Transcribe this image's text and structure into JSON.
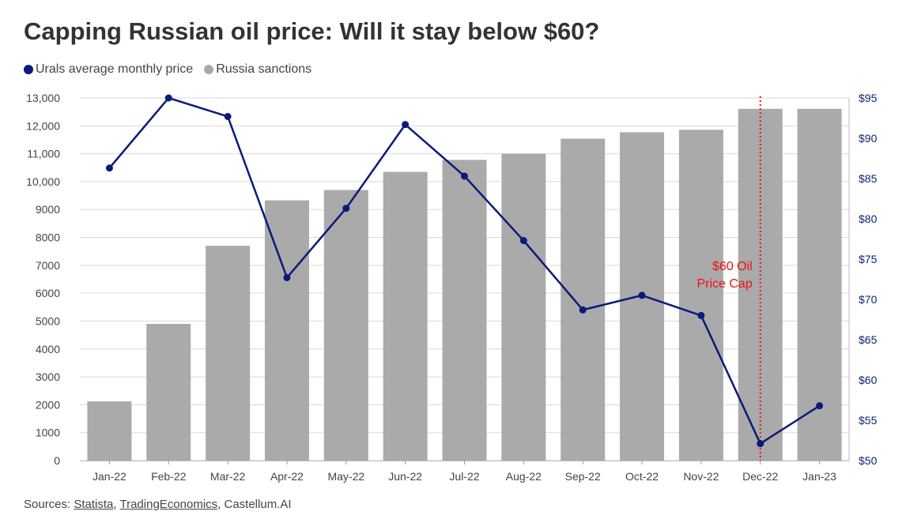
{
  "title": "Capping Russian oil price: Will it stay below $60?",
  "legend": [
    {
      "label": "Urals average monthly price",
      "color": "#0b1a7a"
    },
    {
      "label": "Russia sanctions",
      "color": "#aaaaaa"
    }
  ],
  "source": {
    "prefix": "Sources: ",
    "link1": "Statista",
    "sep1": ", ",
    "link2": "TradingEconomics",
    "sep2": ", ",
    "tail": "Castellum.AI"
  },
  "chart_data": {
    "type": "bar+line",
    "categories": [
      "Jan-22",
      "Feb-22",
      "Mar-22",
      "Apr-22",
      "May-22",
      "Jun-22",
      "Jul-22",
      "Aug-22",
      "Sep-22",
      "Oct-22",
      "Nov-22",
      "Dec-22",
      "Jan-23"
    ],
    "series": [
      {
        "name": "Russia sanctions",
        "type": "bar",
        "axis": "left",
        "color": "#aaaaaa",
        "values": [
          2120,
          4900,
          7700,
          9330,
          9700,
          10350,
          10780,
          11000,
          11540,
          11770,
          11860,
          12610,
          12610
        ]
      },
      {
        "name": "Urals average monthly price",
        "type": "line",
        "axis": "right",
        "color": "#0b1a7a",
        "values": [
          86.3,
          95.0,
          92.7,
          72.7,
          81.3,
          91.7,
          85.3,
          77.3,
          68.7,
          70.5,
          68.0,
          52.1,
          56.8
        ]
      }
    ],
    "left_axis": {
      "min": 0,
      "max": 13000,
      "ticks": [
        "0",
        "1000",
        "2000",
        "3000",
        "4000",
        "5000",
        "6000",
        "7000",
        "8000",
        "9000",
        "10,000",
        "11,000",
        "12,000",
        "13,000"
      ]
    },
    "right_axis": {
      "min": 50,
      "max": 95,
      "ticks": [
        "$50",
        "$55",
        "$60",
        "$65",
        "$70",
        "$75",
        "$80",
        "$85",
        "$90",
        "$95"
      ]
    },
    "gridlines": true,
    "annotation": {
      "lines": [
        "$60 Oil",
        "Price Cap"
      ],
      "category": "Dec-22",
      "color": "#ee1111"
    }
  }
}
